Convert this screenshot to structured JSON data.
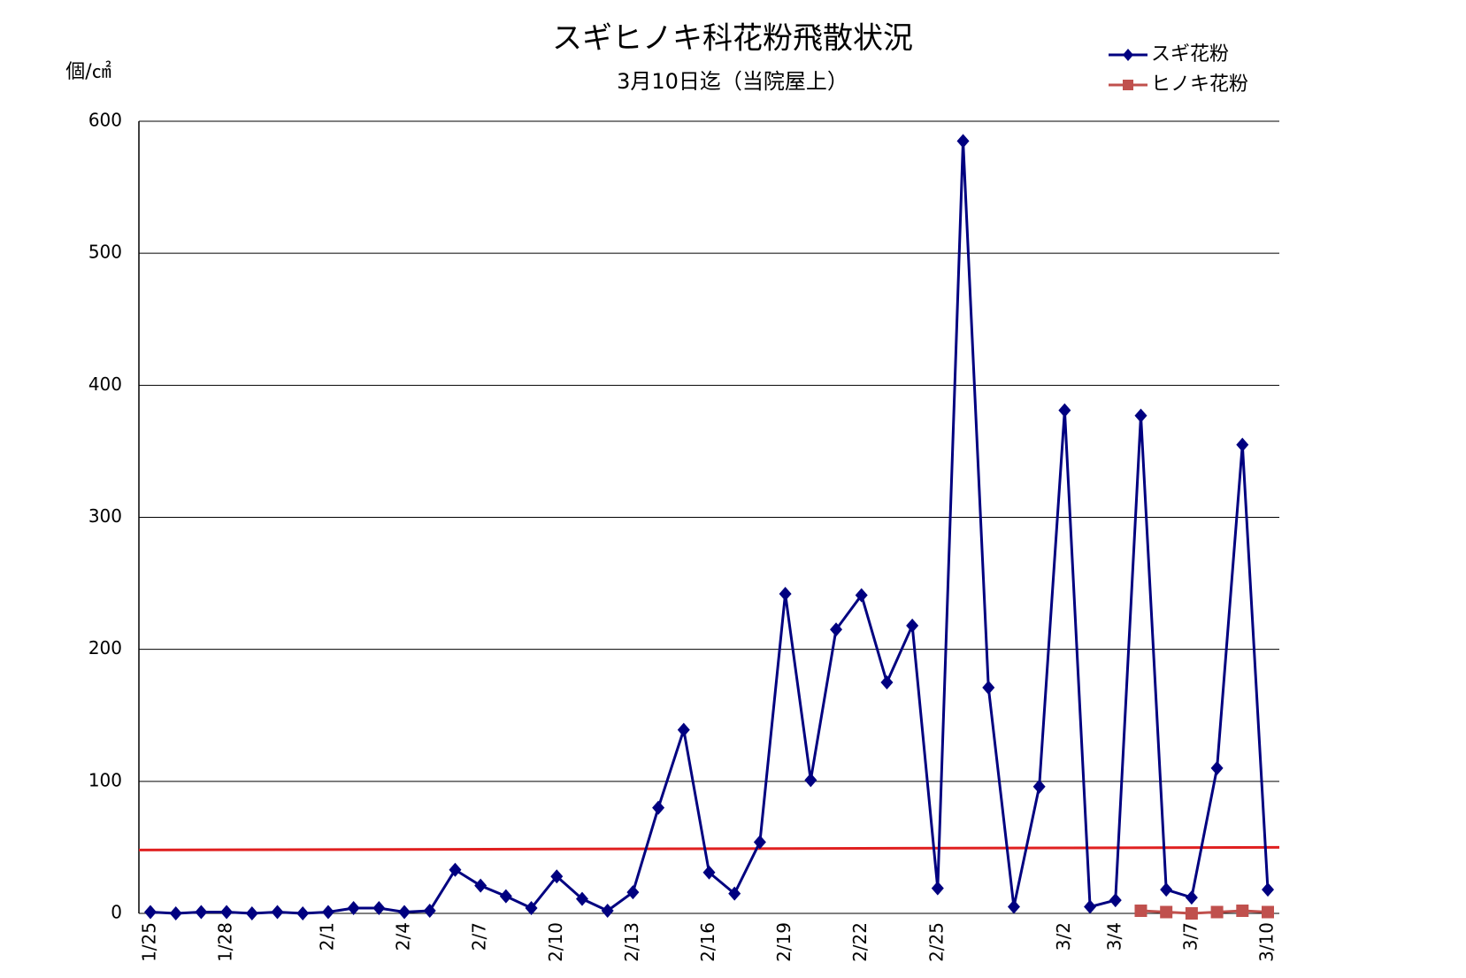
{
  "chart_data": {
    "type": "line",
    "title": "スギヒノキ科花粉飛散状況",
    "subtitle": "3月10日迄（当院屋上）",
    "y_label": "個/㎠",
    "categories": [
      "1/25",
      null,
      null,
      "1/28",
      null,
      null,
      null,
      "2/1",
      null,
      null,
      "2/4",
      null,
      null,
      "2/7",
      null,
      null,
      "2/10",
      null,
      null,
      "2/13",
      null,
      null,
      "2/16",
      null,
      null,
      "2/19",
      null,
      null,
      "2/22",
      null,
      null,
      "2/25",
      null,
      null,
      null,
      null,
      "3/2",
      null,
      "3/4",
      null,
      null,
      "3/7",
      null,
      null,
      "3/10"
    ],
    "series": [
      {
        "name": "スギ花粉",
        "color": "#000080",
        "marker": "diamond",
        "values": [
          1,
          0,
          1,
          1,
          0,
          1,
          0,
          1,
          4,
          4,
          1,
          2,
          33,
          21,
          13,
          4,
          28,
          11,
          2,
          16,
          80,
          139,
          31,
          15,
          54,
          242,
          101,
          215,
          241,
          175,
          218,
          19,
          585,
          171,
          5,
          96,
          381,
          5,
          10,
          377,
          18,
          12,
          110,
          355,
          18
        ]
      },
      {
        "name": "ヒノキ花粉",
        "color": "#c0504d",
        "marker": "square",
        "values": [
          null,
          null,
          null,
          null,
          null,
          null,
          null,
          null,
          null,
          null,
          null,
          null,
          null,
          null,
          null,
          null,
          null,
          null,
          null,
          null,
          null,
          null,
          null,
          null,
          null,
          null,
          null,
          null,
          null,
          null,
          null,
          null,
          null,
          null,
          null,
          null,
          null,
          null,
          null,
          2,
          1,
          0,
          1,
          2,
          1
        ]
      }
    ],
    "reference_line": {
      "color": "#e02020",
      "values": [
        48,
        50
      ]
    },
    "ylim": [
      0,
      600
    ],
    "yticks": [
      0,
      100,
      200,
      300,
      400,
      500,
      600
    ],
    "grid": true,
    "legend": "top-right"
  }
}
